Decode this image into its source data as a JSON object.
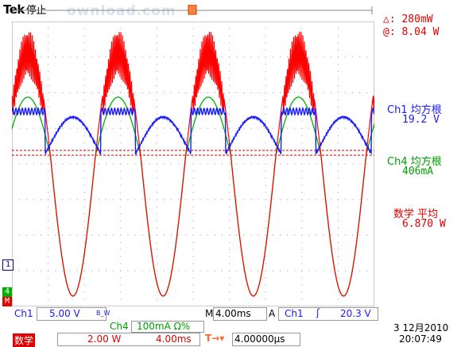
{
  "header": {
    "brand": "Tek",
    "run_state": "停止",
    "watermark": "ownload.com"
  },
  "cursor_readout": {
    "delta": "△:  280mW",
    "at": "@:  8.04 W"
  },
  "measurements": [
    {
      "label": "Ch1 均方根",
      "value": "19.2 V",
      "color": "#1a1aff"
    },
    {
      "label": "Ch4 均方根",
      "value": "406mA",
      "color": "#00a000"
    },
    {
      "label": "数学 平均",
      "value": "6.870 W",
      "color": "#e00000"
    }
  ],
  "markers": {
    "trigger_top": "T",
    "ch1": "1",
    "ch4": "4",
    "math": "M"
  },
  "status": {
    "ch1_label": "Ch1",
    "ch1_scale": "5.00 V",
    "ch1_bw": "B_W",
    "timebase_label": "M",
    "timebase": "4.00ms",
    "trig_mode": "A",
    "trig_source": "Ch1",
    "trig_slope": "ʃ",
    "trig_level": "20.3 V",
    "ch4_label": "Ch4",
    "ch4_scale": "100mA Ω%",
    "date": "3 12月2010",
    "math_label": "数学",
    "math_scale": "2.00 W",
    "math_time": "4.00ms",
    "trig_pos_icon": "T→▾",
    "trig_pos": "4.00000µs",
    "time": "20:07:49"
  },
  "colors": {
    "ch1": "#1a1aff",
    "ch4": "#00b000",
    "math": "#ff0000",
    "grid": "#a0a0a0",
    "cursor": "#c00000"
  }
}
